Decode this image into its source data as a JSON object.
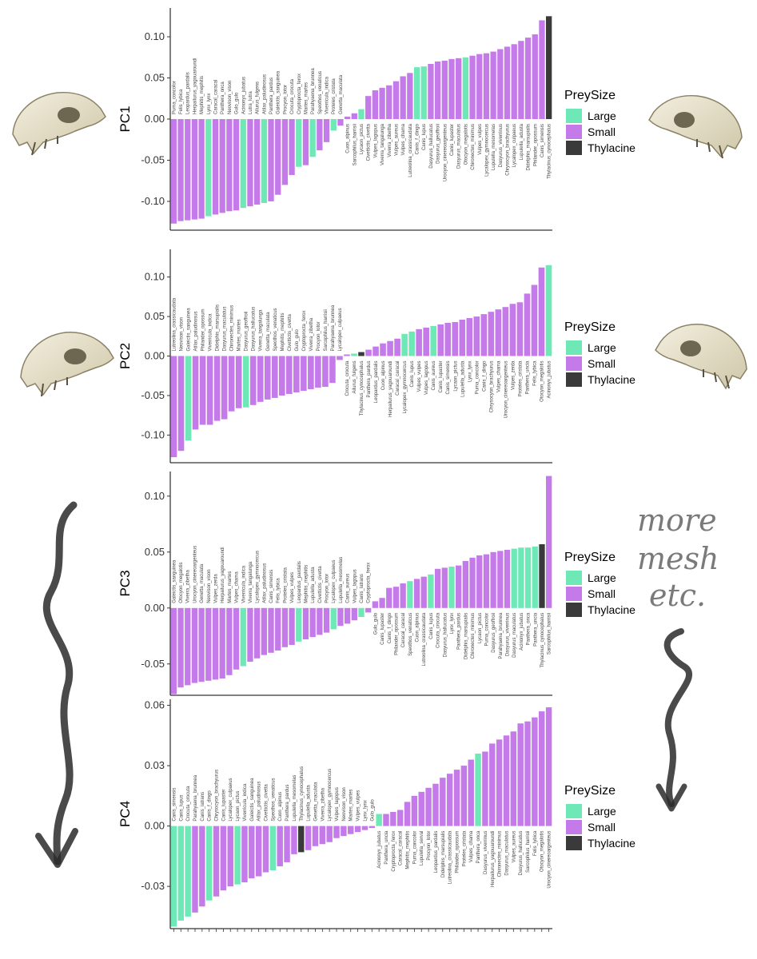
{
  "colors": {
    "Large": "#6de8b6",
    "Small": "#c57ae9",
    "Thylacine": "#3a3a3a"
  },
  "legend": {
    "title": "PreySize",
    "items": [
      "Large",
      "Small",
      "Thylacine"
    ]
  },
  "annotation": {
    "lines": [
      "more",
      "mesh",
      "etc."
    ]
  },
  "chart_data": [
    {
      "type": "bar",
      "ylabel": "PC1",
      "ylim": [
        -0.135,
        0.135
      ],
      "yticks": [
        0.1,
        0.05,
        0.0,
        -0.05,
        -0.1
      ],
      "yticklabels": [
        "0.10",
        "0.05",
        "0.00",
        "-0.05",
        "-0.10"
      ],
      "categories": [
        "Puma_concolor",
        "Felis_lybica",
        "Leopardus_pardalis",
        "Herpailurus_yagouaroundi",
        "Mephitis_mephitis",
        "Lynx_lynx",
        "Caracal_caracal",
        "Panthera_onca",
        "Neovison_vison",
        "Gulo_gulo",
        "Acinonyx_jubatus",
        "Lutra_lutra",
        "Ailurus_fulgens",
        "Atilax_paludinosus",
        "Panthera_pardus",
        "Galeictis_sanguinea",
        "Procyon_lotor",
        "Crocuta_crocuta",
        "Cryptoprocta_ferox",
        "Martes_martes",
        "Parahyaena_brunnea",
        "Speothos_venaticus",
        "Viverricula_indica",
        "Proteles_cristata",
        "Genetta_maculata",
        "Cuon_alpinus",
        "Sarcophilus_harrisii",
        "Lycaon_pictus",
        "Civettictis_civetta",
        "Vulpes_lagopus",
        "Viverra_tangalunga",
        "Viverra_zibetha",
        "Vulpes_aureus",
        "Vulpes_chama",
        "Lutreolina_crassicaudata",
        "Canis_f_dingo",
        "Canis_lupus",
        "Dasyurus_hallucatus",
        "Dasyurus_geoffroii",
        "Urocyon_cinereoargenteus",
        "Canis_lupaster",
        "Dasyurus_maculatus",
        "Otocyon_megalotis",
        "Chironectes_minimus",
        "Vulpes_vulpes",
        "Lycalopex_gymnocercus",
        "Lupulella_mesomelas",
        "Dasyurus_viverrinus",
        "Chrysocyon_brachyurus",
        "Lycalopex_culpaeus",
        "Lupulella_adusta",
        "Didelphis_marsupialis",
        "Philander_opossum",
        "Canis_simensis",
        "Thylacinus_cynocephalus"
      ],
      "values": [
        -0.127,
        -0.124,
        -0.123,
        -0.122,
        -0.121,
        -0.118,
        -0.116,
        -0.114,
        -0.112,
        -0.111,
        -0.108,
        -0.106,
        -0.104,
        -0.102,
        -0.1,
        -0.092,
        -0.08,
        -0.068,
        -0.058,
        -0.056,
        -0.046,
        -0.038,
        -0.028,
        -0.014,
        -0.008,
        0.003,
        0.007,
        0.012,
        0.028,
        0.035,
        0.038,
        0.041,
        0.046,
        0.052,
        0.056,
        0.063,
        0.064,
        0.067,
        0.07,
        0.071,
        0.073,
        0.074,
        0.075,
        0.077,
        0.079,
        0.08,
        0.082,
        0.085,
        0.088,
        0.091,
        0.095,
        0.099,
        0.103,
        0.12,
        0.125
      ],
      "groups": [
        "S",
        "S",
        "S",
        "S",
        "S",
        "L",
        "S",
        "S",
        "S",
        "S",
        "L",
        "S",
        "S",
        "L",
        "S",
        "S",
        "S",
        "S",
        "L",
        "S",
        "L",
        "S",
        "S",
        "L",
        "S",
        "S",
        "S",
        "L",
        "S",
        "S",
        "S",
        "S",
        "S",
        "S",
        "S",
        "L",
        "L",
        "S",
        "S",
        "S",
        "S",
        "S",
        "L",
        "S",
        "S",
        "S",
        "S",
        "S",
        "S",
        "S",
        "S",
        "S",
        "S",
        "S",
        "T"
      ]
    },
    {
      "type": "bar",
      "ylabel": "PC2",
      "ylim": [
        -0.135,
        0.135
      ],
      "yticks": [
        0.1,
        0.05,
        0.0,
        -0.05,
        -0.1
      ],
      "yticklabels": [
        "0.10",
        "0.05",
        "0.00",
        "-0.05",
        "-0.10"
      ],
      "categories": [
        "Lutreolina_crassicaudata",
        "Neovison_vison",
        "Galeictis_sanguinea",
        "Atilax_paludinosus",
        "Philander_opossum",
        "Viverricula_indica",
        "Didelphis_marsupialis",
        "Dasyurus_maculatus",
        "Chironectes_minimus",
        "Martes_martes",
        "Dasyurus_geoffroii",
        "Dasyurus_hallucatus",
        "Viverra_tangalunga",
        "Genetta_maculata",
        "Speothos_venaticus",
        "Mephitis_mephitis",
        "Civettictis_civetta",
        "Gulo_gulo",
        "Cryptoprocta_ferox",
        "Viverra_zibetha",
        "Procyon_lotor",
        "Sarcophilus_harrisii",
        "Parahyaena_brunnea",
        "Lycalopex_culpaeus",
        "Crocuta_crocuta",
        "Ailurus_fulgens",
        "Thylacinus_cynocephalus",
        "Panthera_pardus",
        "Leopardus_pardalis",
        "Cuon_alpinus",
        "Herpailurus_yagouaroundi",
        "Caracal_caracal",
        "Lycalopex_gymnocercus",
        "Canis_lupus",
        "Vulpes_vulpes",
        "Vulpes_lagopus",
        "Canis_aureus",
        "Canis_lupaster",
        "Canis_simensis",
        "Lycaon_pictus",
        "Lupulella_adusta",
        "Lynx_lynx",
        "Puma_concolor",
        "Canis_f_dingo",
        "Chrysocyon_brachyurus",
        "Vulpes_chama",
        "Urocyon_cinereoargenteus",
        "Vulpes_zerda",
        "Proteles_cristata",
        "Panthera_uncia",
        "Felis_lybica",
        "Otocyon_megalotis",
        "Acinonyx_jubatus"
      ],
      "values": [
        -0.128,
        -0.12,
        -0.107,
        -0.093,
        -0.087,
        -0.087,
        -0.082,
        -0.08,
        -0.07,
        -0.066,
        -0.065,
        -0.062,
        -0.058,
        -0.055,
        -0.053,
        -0.05,
        -0.048,
        -0.046,
        -0.044,
        -0.042,
        -0.04,
        -0.039,
        -0.034,
        -0.005,
        0.002,
        0.003,
        0.005,
        0.008,
        0.012,
        0.016,
        0.019,
        0.022,
        0.028,
        0.031,
        0.034,
        0.036,
        0.038,
        0.04,
        0.042,
        0.043,
        0.046,
        0.048,
        0.05,
        0.053,
        0.056,
        0.059,
        0.062,
        0.066,
        0.068,
        0.079,
        0.09,
        0.112,
        0.115
      ],
      "groups": [
        "S",
        "S",
        "L",
        "S",
        "S",
        "S",
        "S",
        "S",
        "S",
        "S",
        "L",
        "S",
        "S",
        "S",
        "S",
        "S",
        "S",
        "S",
        "S",
        "S",
        "S",
        "S",
        "S",
        "S",
        "S",
        "L",
        "T",
        "S",
        "S",
        "S",
        "S",
        "S",
        "L",
        "L",
        "S",
        "S",
        "L",
        "S",
        "S",
        "S",
        "S",
        "S",
        "S",
        "S",
        "S",
        "S",
        "S",
        "S",
        "S",
        "S",
        "S",
        "S",
        "L"
      ]
    },
    {
      "type": "bar",
      "ylabel": "PC3",
      "ylim": [
        -0.078,
        0.122
      ],
      "yticks": [
        0.1,
        0.05,
        0.0,
        -0.05
      ],
      "yticklabels": [
        "0.10",
        "0.05",
        "0.00",
        "-0.05"
      ],
      "categories": [
        "Galeictis_sanguinea",
        "Otocyon_megalotis",
        "Viverra_zibetha",
        "Urocyon_cinereoargenteus",
        "Genetta_maculata",
        "Neovison_vison",
        "Vulpes_zerda",
        "Herpailurus_yagouaroundi",
        "Martes_martes",
        "Vulpes_chama",
        "Viverricula_indica",
        "Viverra_tangalunga",
        "Lycalopex_gymnocercus",
        "Atilax_paludinosus",
        "Canis_simensis",
        "Felis_lybica",
        "Proteles_cristata",
        "Vulpes_vulpes",
        "Leopardus_pardalis",
        "Mephitis_mephitis",
        "Lupulella_adusta",
        "Civettictis_civetta",
        "Procyon_lotor",
        "Lycalopex_culpaeus",
        "Lupulella_mesomelas",
        "Canis_aureus",
        "Vulpes_lagopus",
        "Canis_latrans",
        "Cryptoprocta_ferox",
        "Gulo_gulo",
        "Canis_lupaster",
        "Canis_f_dingo",
        "Philander_opossum",
        "Caracal_caracal",
        "Speothos_venaticus",
        "Cuon_alpinus",
        "Lutreolina_crassicaudata",
        "Canis_lupus",
        "Crocuta_crocuta",
        "Dasyurus_hallucatus",
        "Lynx_lynx",
        "Panthera_pardus",
        "Didelphis_marsupialis",
        "Chironectes_minimus",
        "Lycaon_pictus",
        "Puma_concolor",
        "Dasyurus_geoffroii",
        "Parahyaena_brunnea",
        "Dasyurus_viverrinus",
        "Dasyurus_maculatus",
        "Acinonyx_jubatus",
        "Panthera_onca",
        "Panthera_uncia",
        "Thylacinus_cynocephalus",
        "Sarcophilus_harrisii"
      ],
      "values": [
        -0.077,
        -0.071,
        -0.069,
        -0.067,
        -0.066,
        -0.065,
        -0.064,
        -0.063,
        -0.06,
        -0.055,
        -0.052,
        -0.048,
        -0.045,
        -0.042,
        -0.04,
        -0.038,
        -0.035,
        -0.033,
        -0.03,
        -0.028,
        -0.026,
        -0.024,
        -0.022,
        -0.019,
        -0.016,
        -0.014,
        -0.011,
        -0.008,
        -0.004,
        0.006,
        0.009,
        0.018,
        0.019,
        0.022,
        0.024,
        0.026,
        0.028,
        0.03,
        0.035,
        0.036,
        0.037,
        0.038,
        0.042,
        0.045,
        0.047,
        0.048,
        0.05,
        0.051,
        0.052,
        0.053,
        0.054,
        0.054,
        0.055,
        0.057,
        0.118
      ],
      "groups": [
        "S",
        "S",
        "S",
        "S",
        "S",
        "S",
        "S",
        "S",
        "S",
        "S",
        "L",
        "S",
        "S",
        "S",
        "S",
        "S",
        "S",
        "S",
        "L",
        "S",
        "S",
        "S",
        "S",
        "L",
        "S",
        "S",
        "S",
        "L",
        "S",
        "S",
        "S",
        "S",
        "S",
        "S",
        "L",
        "S",
        "S",
        "L",
        "S",
        "S",
        "L",
        "S",
        "S",
        "S",
        "S",
        "S",
        "S",
        "S",
        "S",
        "L",
        "L",
        "L",
        "L",
        "T",
        "S"
      ]
    },
    {
      "type": "bar",
      "ylabel": "PC4",
      "ylim": [
        -0.051,
        0.063
      ],
      "yticks": [
        0.06,
        0.03,
        0.0,
        -0.03
      ],
      "yticklabels": [
        "0.06",
        "0.03",
        "0.00",
        "-0.03"
      ],
      "categories": [
        "Canis_simensis",
        "Canis_lupus",
        "Crocuta_crocuta",
        "Parahyaena_brunnea",
        "Canis_latrans",
        "Canis_f_dingo",
        "Chrysocyon_brachyurus",
        "Canis_lupaster",
        "Lycalopex_culpaeus",
        "Lycaon_pictus",
        "Viverricula_indica",
        "Galeictis_sanguinea",
        "Atilax_paludinosus",
        "Civettictis_civetta",
        "Speothos_venaticus",
        "Cuon_alpinus",
        "Panthera_pardus",
        "Lupulella_mesomelas",
        "Thylacinus_cynocephalus",
        "Lupulella_adusta",
        "Genetta_maculata",
        "Viverra_zibetha",
        "Lycalopex_gymnocercus",
        "Vulpes_lagopus",
        "Neovison_vison",
        "Martes_martes",
        "Vulpes_vulpes",
        "Lynx_lynx",
        "Gulo_gulo",
        "Acinonyx_jubatus",
        "Panthera_uncia",
        "Cryptoprocta_ferox",
        "Caracal_caracal",
        "Mephitis_mephitis",
        "Puma_concolor",
        "Lupulella_serval",
        "Procyon_lotor",
        "Leopardus_pardalis",
        "Didelphis_marsupialis",
        "Lutreolina_crassicaudata",
        "Philander_opossum",
        "Proteles_cristata",
        "Vulpes_chama",
        "Panthera_onca",
        "Dasyurus_viverrinus",
        "Herpailurus_yagouaroundi",
        "Chironectes_minimus",
        "Dasyurus_maculatus",
        "Vulpes_aureus",
        "Dasyurus_hallucatus",
        "Sarcophilus_harrisii",
        "Felis_lybica",
        "Otocyon_megalotis",
        "Urocyon_cinereoargenteus"
      ],
      "values": [
        -0.05,
        -0.047,
        -0.045,
        -0.043,
        -0.04,
        -0.037,
        -0.035,
        -0.032,
        -0.03,
        -0.029,
        -0.028,
        -0.026,
        -0.025,
        -0.023,
        -0.022,
        -0.02,
        -0.018,
        -0.014,
        -0.013,
        -0.012,
        -0.01,
        -0.009,
        -0.008,
        -0.006,
        -0.005,
        -0.004,
        -0.003,
        -0.002,
        -0.001,
        0.006,
        0.006,
        0.007,
        0.008,
        0.012,
        0.015,
        0.017,
        0.019,
        0.021,
        0.024,
        0.026,
        0.028,
        0.03,
        0.033,
        0.036,
        0.037,
        0.041,
        0.043,
        0.045,
        0.047,
        0.051,
        0.052,
        0.054,
        0.057,
        0.059
      ],
      "groups": [
        "L",
        "L",
        "L",
        "S",
        "S",
        "L",
        "S",
        "S",
        "S",
        "L",
        "S",
        "S",
        "S",
        "S",
        "L",
        "S",
        "S",
        "S",
        "T",
        "S",
        "S",
        "S",
        "S",
        "S",
        "S",
        "S",
        "S",
        "S",
        "S",
        "L",
        "S",
        "S",
        "S",
        "S",
        "S",
        "S",
        "S",
        "S",
        "S",
        "S",
        "S",
        "S",
        "S",
        "L",
        "S",
        "S",
        "S",
        "S",
        "S",
        "S",
        "S",
        "S",
        "S",
        "S"
      ]
    }
  ]
}
